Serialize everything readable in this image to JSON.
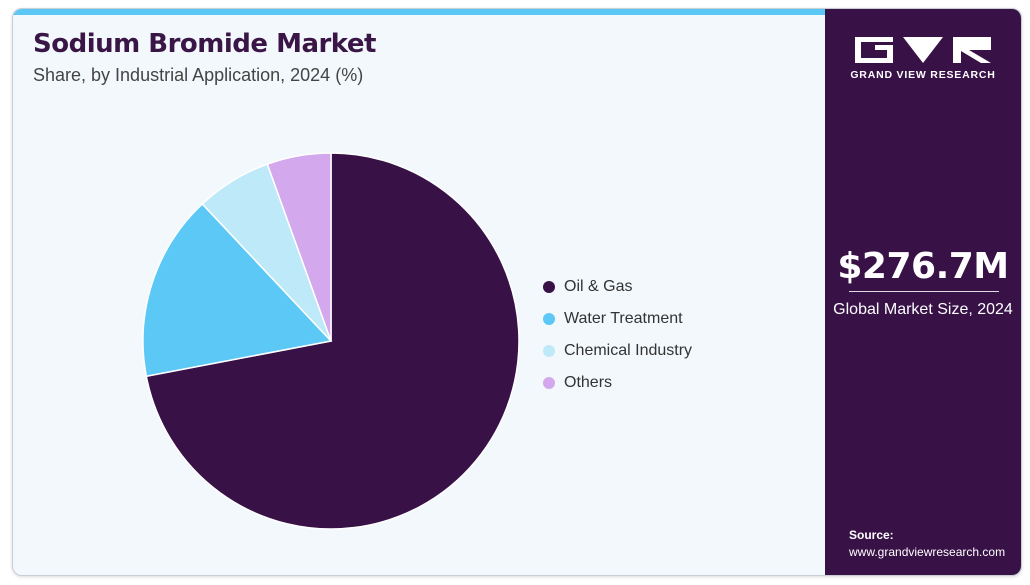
{
  "header": {
    "title": "Sodium Bromide Market",
    "subtitle": "Share, by Industrial Application, 2024 (%)"
  },
  "chart_data": {
    "type": "pie",
    "title": "Sodium Bromide Market",
    "subtitle": "Share, by Industrial Application, 2024 (%)",
    "categories": [
      "Oil & Gas",
      "Water Treatment",
      "Chemical Industry",
      "Others"
    ],
    "values": [
      72.0,
      16.0,
      6.5,
      5.5
    ],
    "colors": [
      "#381147",
      "#5bc8f5",
      "#bde9f9",
      "#d3a8ec"
    ],
    "start_angle_deg": 0,
    "direction": "clockwise",
    "legend_position": "right"
  },
  "legend": [
    {
      "label": "Oil & Gas",
      "color": "#381147"
    },
    {
      "label": "Water Treatment",
      "color": "#5bc8f5"
    },
    {
      "label": "Chemical Industry",
      "color": "#bde9f9"
    },
    {
      "label": "Others",
      "color": "#d3a8ec"
    }
  ],
  "sidebar": {
    "brand": "GRAND VIEW RESEARCH",
    "market_value": "$276.7M",
    "market_label": "Global Market Size, 2024",
    "source_label": "Source:",
    "source_url": "www.grandviewresearch.com"
  }
}
